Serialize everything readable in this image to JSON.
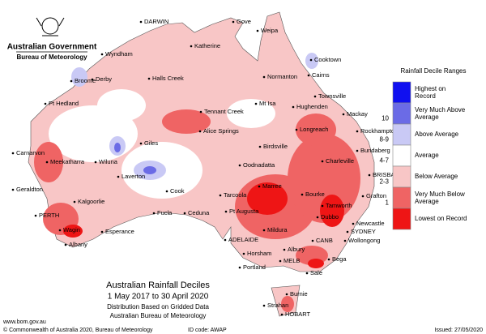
{
  "header": {
    "government": "Australian Government",
    "agency": "Bureau of Meteorology"
  },
  "map": {
    "title": "Australian Rainfall Deciles",
    "period": "1 May 2017 to 30 April 2020",
    "method": "Distribution Based on Gridded Data",
    "source": "Australian Bureau of Meteorology",
    "places": [
      "DARWIN",
      "Gove",
      "Weipa",
      "Katherine",
      "Wyndham",
      "Cooktown",
      "Normanton",
      "Cairns",
      "Broome",
      "Derby",
      "Halls Creek",
      "Townsville",
      "Pt Hedland",
      "Mt Isa",
      "Hughenden",
      "Mackay",
      "Tennant Creek",
      "Rockhampton",
      "Longreach",
      "Alice Springs",
      "Carnarvon",
      "Giles",
      "Birdsville",
      "Bundaberg",
      "Meekatharra",
      "Wiluna",
      "Charleville",
      "Oodnadatta",
      "Laverton",
      "BRISBANE",
      "Geraldton",
      "Marree",
      "Cook",
      "Grafton",
      "Tarcoola",
      "Bourke",
      "Kalgoorlie",
      "PERTH",
      "Fucla",
      "Ceduna",
      "Pt Augusta",
      "Tamworth",
      "Dubbo",
      "Newcastle",
      "SYDNEY",
      "Wagin",
      "Esperance",
      "ADELAIDE",
      "Mildura",
      "CANB",
      "Wollongong",
      "Albany",
      "Albury",
      "Horsham",
      "MELB",
      "Bega",
      "Portland",
      "Sale",
      "Burnie",
      "Strahan",
      "HOBART"
    ]
  },
  "legend": {
    "title": "Rainfall Decile Ranges",
    "items": [
      {
        "label": "Highest on Record",
        "color": "#1010f0"
      },
      {
        "label": "Very Much Above Average",
        "color": "#6b6be6"
      },
      {
        "label": "Above Average",
        "color": "#c9c9f5"
      },
      {
        "label": "Average",
        "color": "#ffffff"
      },
      {
        "label": "Below Average",
        "color": "#f8c6c6"
      },
      {
        "label": "Very Much Below Average",
        "color": "#ef6464"
      },
      {
        "label": "Lowest on Record",
        "color": "#ee1515"
      }
    ],
    "deciles": [
      "10",
      "8-9",
      "4-7",
      "2-3",
      "1"
    ]
  },
  "footer": {
    "url": "www.bom.gov.au",
    "copyright": "© Commonwealth of Australia 2020, Bureau of Meteorology",
    "id": "ID code: AWAP",
    "issued": "Issued: 27/05/2020"
  }
}
